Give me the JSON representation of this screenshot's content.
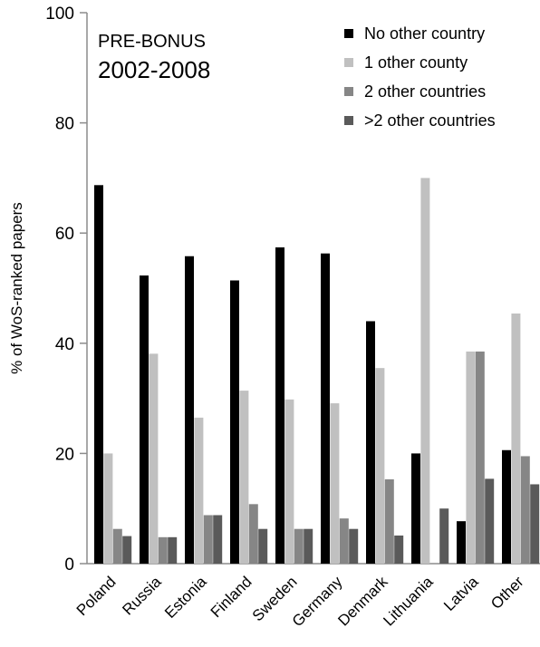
{
  "chart_data": {
    "type": "bar",
    "title": "PRE-BONUS",
    "subtitle": "2002-2008",
    "xlabel": "",
    "ylabel": "% of WoS-ranked papers",
    "ylim": [
      0,
      100
    ],
    "yticks": [
      0,
      20,
      40,
      60,
      80,
      100
    ],
    "grid": false,
    "legend_position": "top-right",
    "categories": [
      "Poland",
      "Russia",
      "Estonia",
      "Finland",
      "Sweden",
      "Germany",
      "Denmark",
      "Lithuania",
      "Latvia",
      "Other"
    ],
    "series": [
      {
        "name": "No other country",
        "color": "#000000",
        "values": [
          68.7,
          52.3,
          55.8,
          51.4,
          57.4,
          56.3,
          44.0,
          20.0,
          7.7,
          20.6
        ]
      },
      {
        "name": "1 other county",
        "color": "#c0c0c0",
        "values": [
          20.0,
          38.1,
          26.5,
          31.4,
          29.8,
          29.1,
          35.5,
          70.0,
          38.5,
          45.4
        ]
      },
      {
        "name": "2 other countries",
        "color": "#868686",
        "values": [
          6.3,
          4.8,
          8.8,
          10.8,
          6.3,
          8.2,
          15.3,
          0.0,
          38.5,
          19.5
        ]
      },
      {
        "name": ">2 other countries",
        "color": "#5a5a5a",
        "values": [
          5.0,
          4.8,
          8.8,
          6.3,
          6.3,
          6.3,
          5.1,
          10.0,
          15.4,
          14.4
        ]
      }
    ]
  }
}
